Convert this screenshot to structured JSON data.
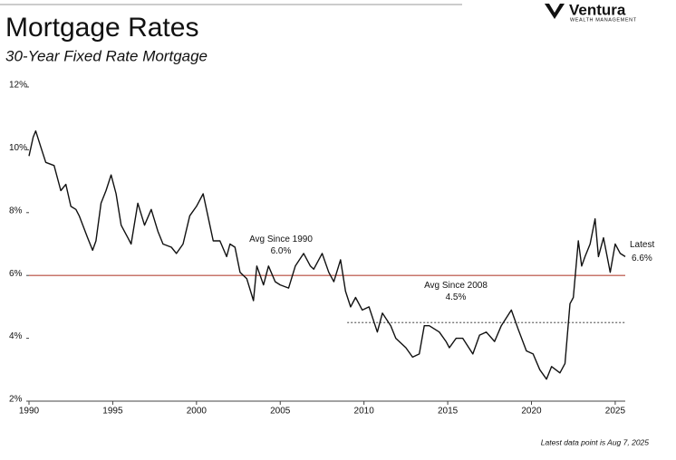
{
  "logo": {
    "name": "Ventura",
    "tagline": "WEALTH MANAGEMENT"
  },
  "chart_data": {
    "type": "line",
    "title": "Mortgage Rates",
    "subtitle": "30-Year Fixed Rate Mortgage",
    "footnote": "Latest data point is Aug 7, 2025",
    "xlim": [
      1990,
      2025.6
    ],
    "xticks": [
      1990,
      1995,
      2000,
      2005,
      2010,
      2015,
      2020,
      2025
    ],
    "ylim": [
      2,
      12
    ],
    "yticks": [
      {
        "value": 2,
        "label": "2%"
      },
      {
        "value": 4,
        "label": "4%"
      },
      {
        "value": 6,
        "label": "6%"
      },
      {
        "value": 8,
        "label": "8%"
      },
      {
        "value": 10,
        "label": "10%"
      },
      {
        "value": 12,
        "label": "12%"
      }
    ],
    "reference_lines": [
      {
        "label": "Avg Since 1990",
        "value": 6.0,
        "value_label": "6.0%",
        "start": 1990,
        "color": "#b5483a",
        "style": "solid"
      },
      {
        "label": "Avg Since 2008",
        "value": 4.5,
        "value_label": "4.5%",
        "start": 2009,
        "color": "#666666",
        "style": "dotted"
      }
    ],
    "latest": {
      "label": "Latest",
      "value": 6.6,
      "value_label": "6.6%"
    },
    "series": [
      {
        "name": "30-Year Fixed Rate Mortgage",
        "color": "#111111",
        "x": [
          1990.0,
          1990.25,
          1990.4,
          1990.7,
          1991.0,
          1991.5,
          1991.9,
          1992.2,
          1992.5,
          1992.8,
          1993.0,
          1993.5,
          1993.8,
          1994.0,
          1994.3,
          1994.6,
          1994.9,
          1995.2,
          1995.5,
          1995.9,
          1996.1,
          1996.5,
          1996.9,
          1997.3,
          1997.7,
          1998.0,
          1998.5,
          1998.8,
          1999.2,
          1999.6,
          2000.0,
          2000.4,
          2000.8,
          2001.0,
          2001.4,
          2001.8,
          2002.0,
          2002.3,
          2002.6,
          2003.0,
          2003.4,
          2003.6,
          2004.0,
          2004.3,
          2004.7,
          2005.0,
          2005.5,
          2005.9,
          2006.4,
          2006.8,
          2007.0,
          2007.5,
          2007.9,
          2008.2,
          2008.6,
          2008.9,
          2009.2,
          2009.5,
          2009.9,
          2010.3,
          2010.8,
          2011.1,
          2011.6,
          2011.9,
          2012.5,
          2012.9,
          2013.3,
          2013.6,
          2013.9,
          2014.5,
          2014.9,
          2015.1,
          2015.5,
          2015.9,
          2016.5,
          2016.9,
          2017.3,
          2017.8,
          2018.2,
          2018.8,
          2019.2,
          2019.7,
          2020.1,
          2020.5,
          2020.9,
          2021.2,
          2021.7,
          2022.0,
          2022.3,
          2022.5,
          2022.8,
          2023.0,
          2023.2,
          2023.5,
          2023.8,
          2024.0,
          2024.3,
          2024.7,
          2025.0,
          2025.3,
          2025.6
        ],
        "values": [
          9.8,
          10.4,
          10.6,
          10.1,
          9.6,
          9.5,
          8.7,
          8.9,
          8.2,
          8.1,
          7.9,
          7.2,
          6.8,
          7.1,
          8.3,
          8.7,
          9.2,
          8.6,
          7.6,
          7.2,
          7.0,
          8.3,
          7.6,
          8.1,
          7.4,
          7.0,
          6.9,
          6.7,
          7.0,
          7.9,
          8.2,
          8.6,
          7.6,
          7.1,
          7.1,
          6.6,
          7.0,
          6.9,
          6.1,
          5.9,
          5.2,
          6.3,
          5.7,
          6.3,
          5.8,
          5.7,
          5.6,
          6.3,
          6.7,
          6.3,
          6.2,
          6.7,
          6.1,
          5.8,
          6.5,
          5.5,
          5.0,
          5.3,
          4.9,
          5.0,
          4.2,
          4.8,
          4.4,
          4.0,
          3.7,
          3.4,
          3.5,
          4.4,
          4.4,
          4.2,
          3.9,
          3.7,
          4.0,
          4.0,
          3.5,
          4.1,
          4.2,
          3.9,
          4.4,
          4.9,
          4.3,
          3.6,
          3.5,
          3.0,
          2.7,
          3.1,
          2.9,
          3.2,
          5.1,
          5.3,
          7.1,
          6.3,
          6.6,
          7.0,
          7.8,
          6.6,
          7.2,
          6.1,
          7.0,
          6.7,
          6.6
        ]
      }
    ]
  }
}
